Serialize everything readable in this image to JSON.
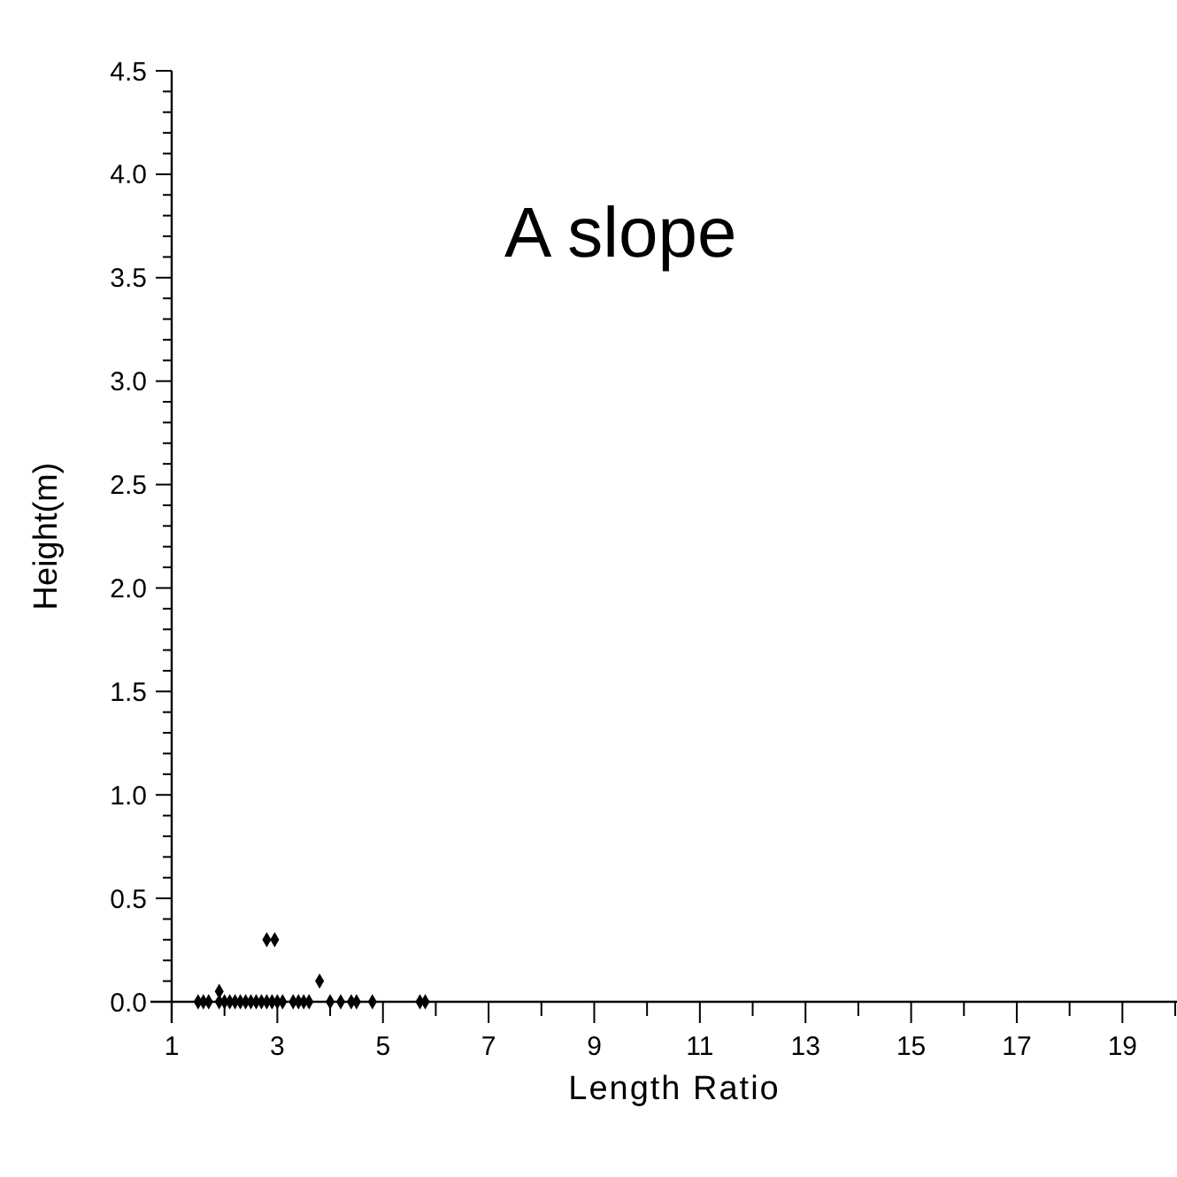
{
  "chart_data": {
    "type": "scatter",
    "title": "A  slope",
    "xlabel": "Length Ratio",
    "ylabel": "Height(m)",
    "x": [
      1.5,
      1.6,
      1.7,
      1.9,
      2.0,
      2.1,
      2.2,
      2.3,
      2.4,
      2.5,
      2.6,
      2.7,
      2.8,
      2.9,
      3.0,
      3.1,
      3.3,
      3.4,
      3.5,
      3.6,
      4.0,
      4.2,
      4.4,
      4.5,
      4.8,
      5.7,
      5.8,
      1.9,
      2.8,
      2.95,
      3.8
    ],
    "values": [
      0,
      0,
      0,
      0,
      0,
      0,
      0,
      0,
      0,
      0,
      0,
      0,
      0,
      0,
      0,
      0,
      0,
      0,
      0,
      0,
      0,
      0,
      0,
      0,
      0,
      0,
      0,
      0.05,
      0.3,
      0.3,
      0.1
    ],
    "color": "#000000",
    "marker": "diamond",
    "grid": false,
    "xlim": [
      1,
      20
    ],
    "xticks": [
      1,
      {
        "value": 2,
        "label": null
      },
      3,
      {
        "value": 4,
        "label": null
      },
      5,
      {
        "value": 6,
        "label": null
      },
      7,
      {
        "value": 8,
        "label": null
      },
      9,
      {
        "value": 10,
        "label": null
      },
      11,
      {
        "value": 12,
        "label": null
      },
      13,
      {
        "value": 14,
        "label": null
      },
      15,
      {
        "value": 16,
        "label": null
      },
      17,
      {
        "value": 18,
        "label": null
      },
      19,
      {
        "value": 20,
        "label": null
      }
    ],
    "ylim": [
      0,
      4.5
    ],
    "yticks": [
      {
        "value": 0,
        "label": "0.0"
      },
      {
        "value": 0.5,
        "label": "0.5"
      },
      {
        "value": 1,
        "label": "1.0"
      },
      {
        "value": 1.5,
        "label": "1.5"
      },
      {
        "value": 2,
        "label": "2.0"
      },
      {
        "value": 2.5,
        "label": "2.5"
      },
      {
        "value": 3,
        "label": "3.0"
      },
      {
        "value": 3.5,
        "label": "3.5"
      },
      {
        "value": 4,
        "label": "4.0"
      },
      {
        "value": 4.5,
        "label": "4.5"
      }
    ]
  }
}
